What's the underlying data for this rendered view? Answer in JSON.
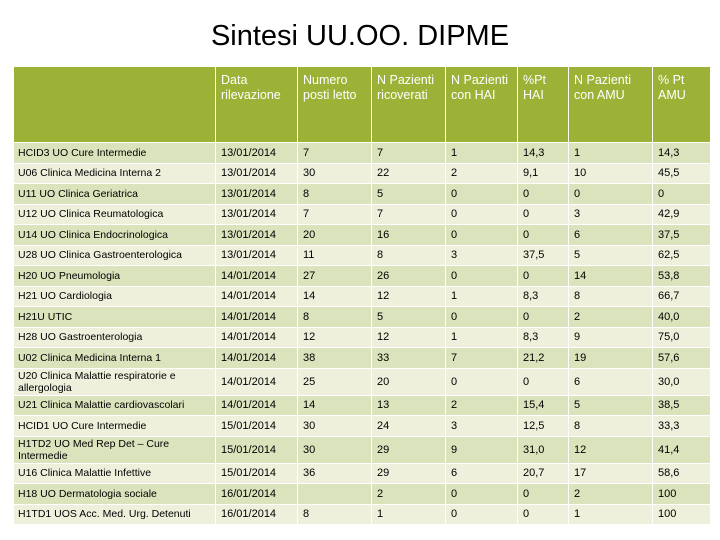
{
  "title": "Sintesi UU.OO. DIPME",
  "columns": [
    "",
    "Data rilevazione",
    "Numero posti letto",
    "N Pazienti ricoverati",
    "N Pazienti con HAI",
    "%Pt HAI",
    "N Pazienti con AMU",
    "% Pt AMU"
  ],
  "rows": [
    [
      "HCID3 UO Cure Intermedie",
      "13/01/2014",
      "7",
      "7",
      "1",
      "14,3",
      "1",
      "14,3"
    ],
    [
      "U06 Clinica Medicina Interna 2",
      "13/01/2014",
      "30",
      "22",
      "2",
      "9,1",
      "10",
      "45,5"
    ],
    [
      "U11 UO Clinica Geriatrica",
      "13/01/2014",
      "8",
      "5",
      "0",
      "0",
      "0",
      "0"
    ],
    [
      "U12 UO Clinica Reumatologica",
      "13/01/2014",
      "7",
      "7",
      "0",
      "0",
      "3",
      "42,9"
    ],
    [
      "U14 UO Clinica Endocrinologica",
      "13/01/2014",
      "20",
      "16",
      "0",
      "0",
      "6",
      "37,5"
    ],
    [
      "U28 UO Clinica Gastroenterologica",
      "13/01/2014",
      "11",
      "8",
      "3",
      "37,5",
      "5",
      "62,5"
    ],
    [
      "H20 UO Pneumologia",
      "14/01/2014",
      "27",
      "26",
      "0",
      "0",
      "14",
      "53,8"
    ],
    [
      "H21 UO Cardiologia",
      "14/01/2014",
      "14",
      "12",
      "1",
      "8,3",
      "8",
      "66,7"
    ],
    [
      "H21U UTIC",
      "14/01/2014",
      "8",
      "5",
      "0",
      "0",
      "2",
      "40,0"
    ],
    [
      "H28 UO Gastroenterologia",
      "14/01/2014",
      "12",
      "12",
      "1",
      "8,3",
      "9",
      "75,0"
    ],
    [
      "U02 Clinica Medicina Interna 1",
      "14/01/2014",
      "38",
      "33",
      "7",
      "21,2",
      "19",
      "57,6"
    ],
    [
      "U20 Clinica Malattie respiratorie e allergologia",
      "14/01/2014",
      "25",
      "20",
      "0",
      "0",
      "6",
      "30,0"
    ],
    [
      "U21 Clinica Malattie cardiovascolari",
      "14/01/2014",
      "14",
      "13",
      "2",
      "15,4",
      "5",
      "38,5"
    ],
    [
      "HCID1 UO Cure Intermedie",
      "15/01/2014",
      "30",
      "24",
      "3",
      "12,5",
      "8",
      "33,3"
    ],
    [
      "H1TD2 UO Med Rep Det – Cure Intermedie",
      "15/01/2014",
      "30",
      "29",
      "9",
      "31,0",
      "12",
      "41,4"
    ],
    [
      "U16 Clinica Malattie Infettive",
      "15/01/2014",
      "36",
      "29",
      "6",
      "20,7",
      "17",
      "58,6"
    ],
    [
      "H18 UO Dermatologia sociale",
      "16/01/2014",
      "",
      "2",
      "0",
      "0",
      "2",
      "100"
    ],
    [
      "H1TD1 UOS Acc. Med. Urg. Detenuti",
      "16/01/2014",
      "8",
      "1",
      "0",
      "0",
      "1",
      "100"
    ]
  ]
}
